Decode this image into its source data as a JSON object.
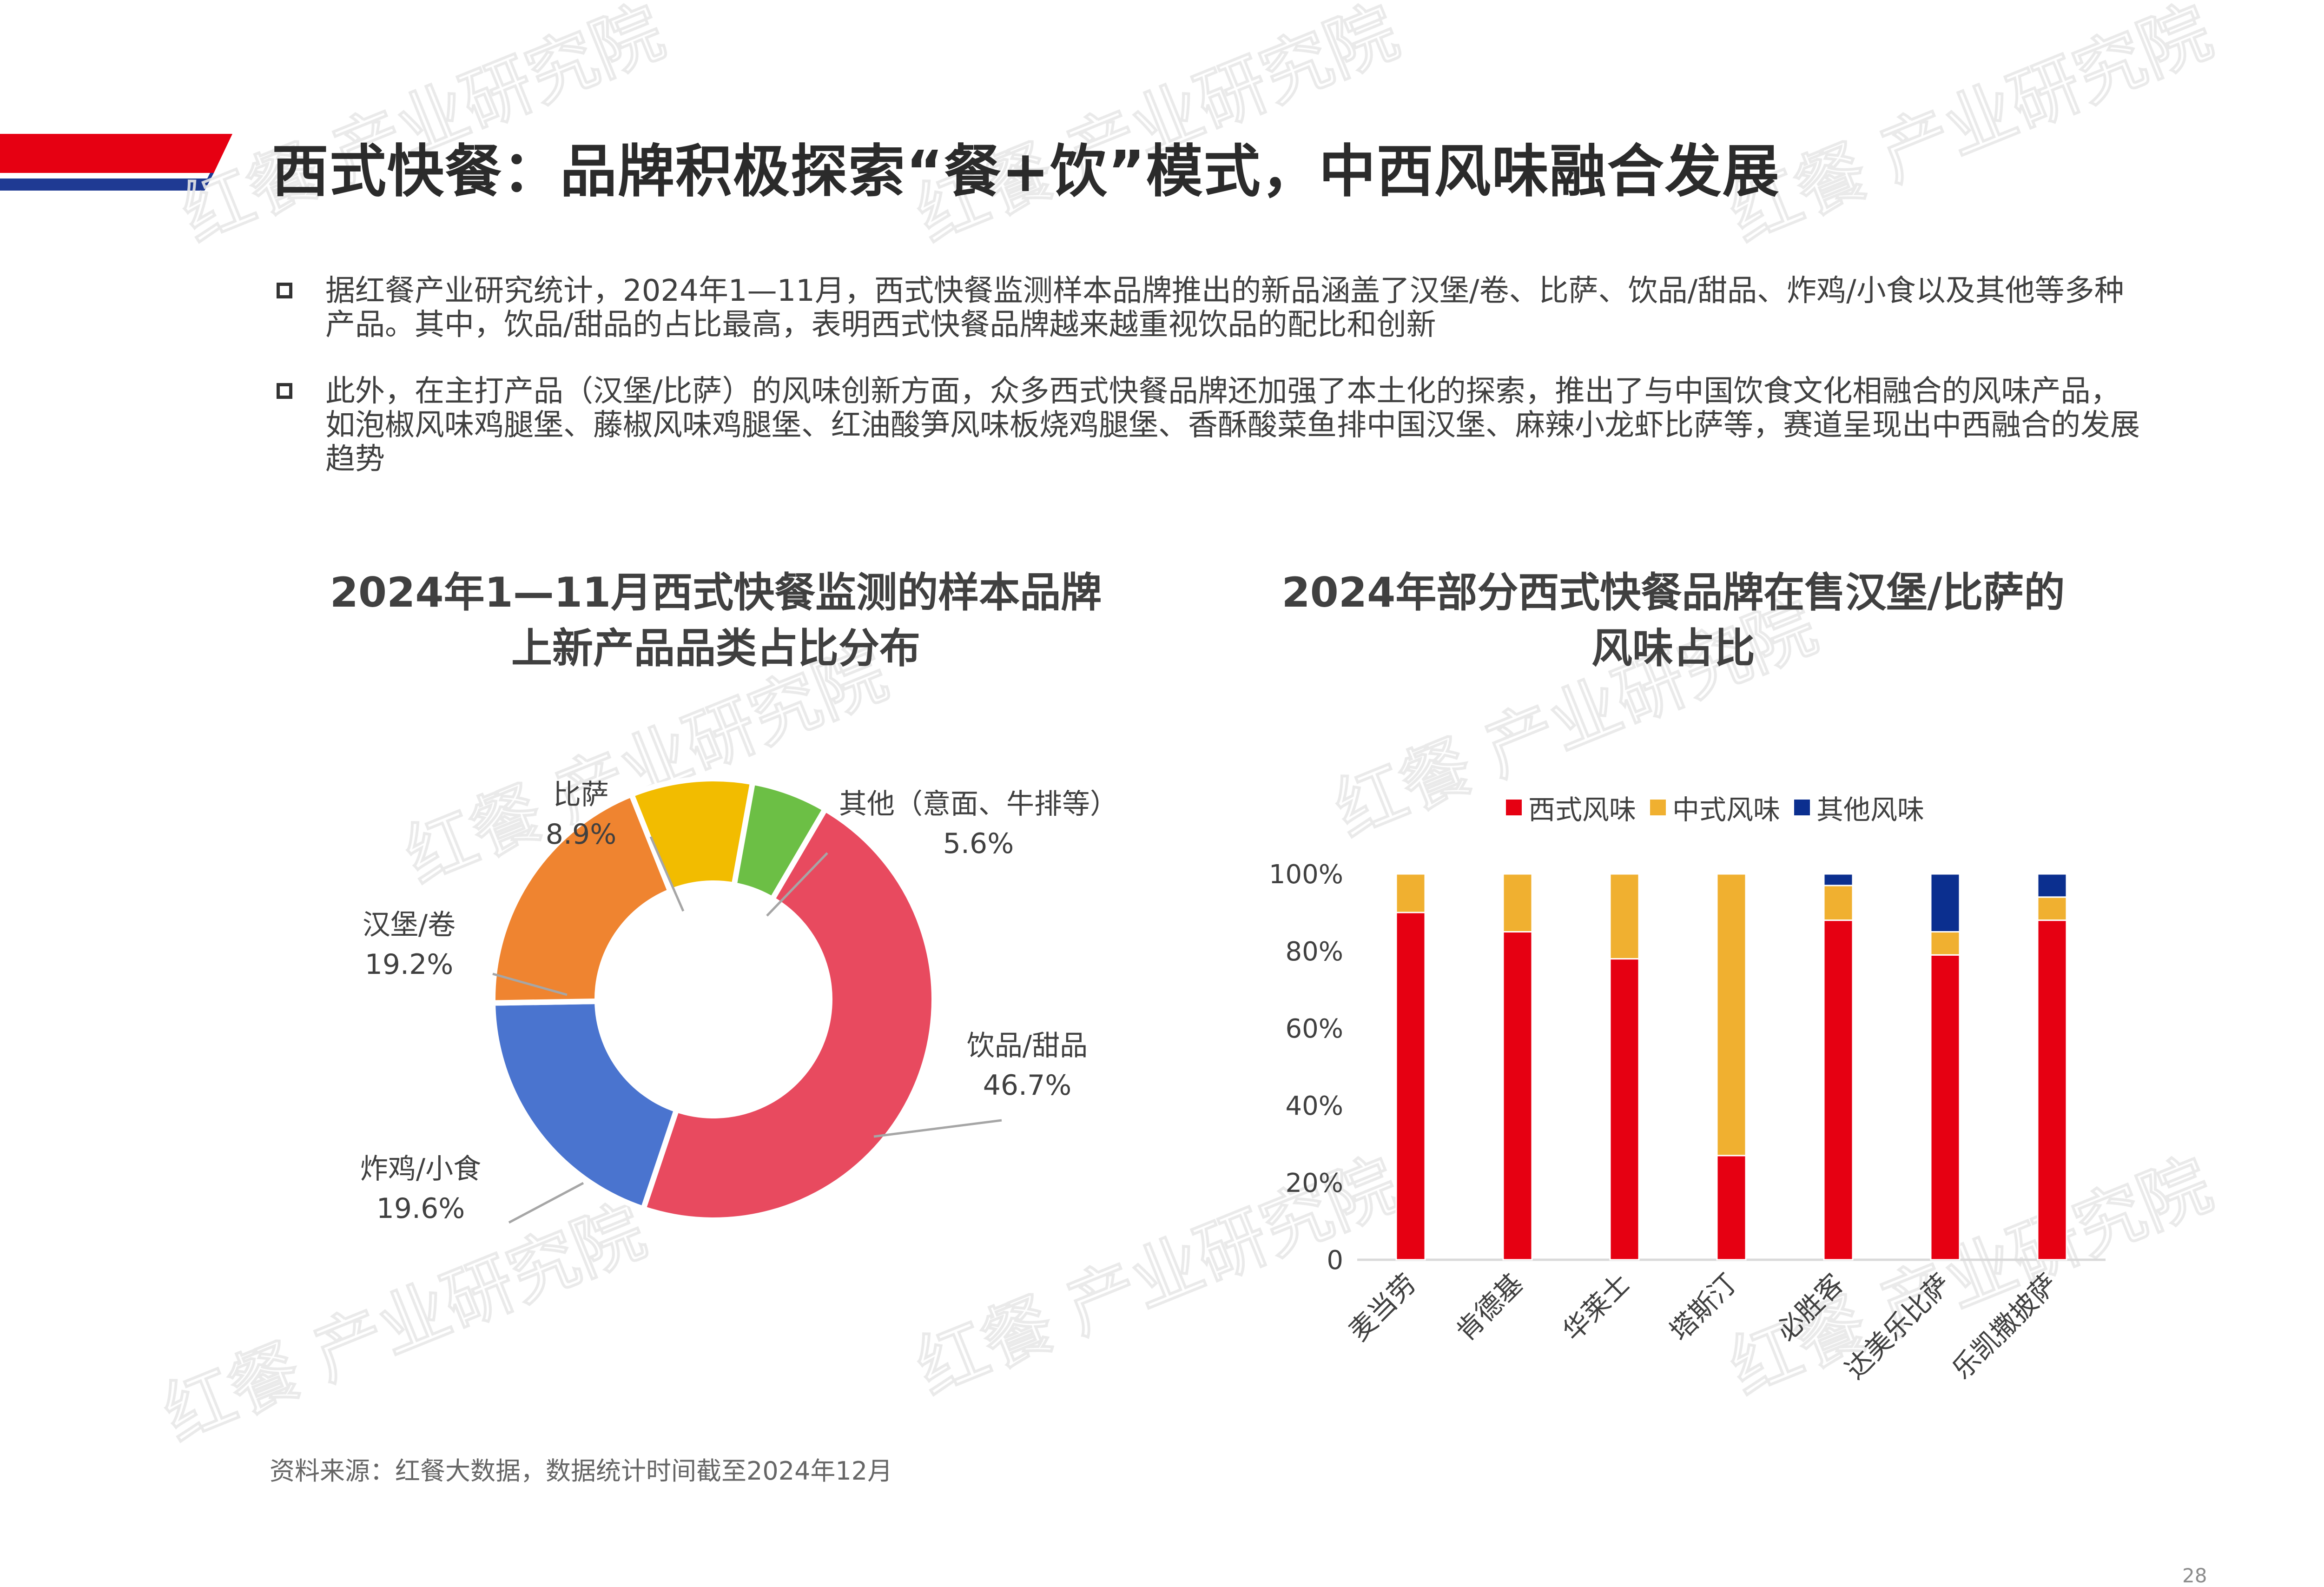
{
  "page": {
    "title": "西式快餐：品牌积极探索“餐+饮”模式，中西风味融合发展",
    "page_number": "28",
    "source": "资料来源：红餐大数据，数据统计时间截至2024年12月",
    "watermark": "红餐 产业研究院",
    "accent_colors": {
      "red": "#e60012",
      "blue": "#1f3a93"
    }
  },
  "bullets": [
    "据红餐产业研究统计，2024年1—11月，西式快餐监测样本品牌推出的新品涵盖了汉堡/卷、比萨、饮品/甜品、炸鸡/小食以及其他等多种产品。其中，饮品/甜品的占比最高，表明西式快餐品牌越来越重视饮品的配比和创新",
    "此外，在主打产品（汉堡/比萨）的风味创新方面，众多西式快餐品牌还加强了本土化的探索，推出了与中国饮食文化相融合的风味产品，如泡椒风味鸡腿堡、藤椒风味鸡腿堡、红油酸笋风味板烧鸡腿堡、香酥酸菜鱼排中国汉堡、麻辣小龙虾比萨等，赛道呈现出中西融合的发展趋势"
  ],
  "chart_data": [
    {
      "type": "pie",
      "donut": true,
      "title_line1": "2024年1—11月西式快餐监测的样本品牌",
      "title_line2": "上新产品品类占比分布",
      "slices": [
        {
          "label": "饮品/甜品",
          "value": 46.7,
          "value_label": "46.7%",
          "color": "#e84a5f"
        },
        {
          "label": "炸鸡/小食",
          "value": 19.6,
          "value_label": "19.6%",
          "color": "#4a74cf"
        },
        {
          "label": "汉堡/卷",
          "value": 19.2,
          "value_label": "19.2%",
          "color": "#ef8430"
        },
        {
          "label": "比萨",
          "value": 8.9,
          "value_label": "8.9%",
          "color": "#f2bc00"
        },
        {
          "label": "其他（意面、牛排等）",
          "value": 5.6,
          "value_label": "5.6%",
          "color": "#6cbf45"
        }
      ]
    },
    {
      "type": "bar",
      "stacked": true,
      "title_line1": "2024年部分西式快餐品牌在售汉堡/比萨的",
      "title_line2": "风味占比",
      "categories": [
        "麦当劳",
        "肯德基",
        "华莱士",
        "塔斯汀",
        "必胜客",
        "达美乐比萨",
        "乐凯撒披萨"
      ],
      "series": [
        {
          "name": "西式风味",
          "color": "#e60012",
          "values": [
            90,
            85,
            78,
            27,
            88,
            79,
            88
          ]
        },
        {
          "name": "中式风味",
          "color": "#f0b030",
          "values": [
            10,
            15,
            22,
            73,
            9,
            6,
            6
          ]
        },
        {
          "name": "其他风味",
          "color": "#0b2f8f",
          "values": [
            0,
            0,
            0,
            0,
            3,
            15,
            6
          ]
        }
      ],
      "ylim": [
        0,
        100
      ],
      "yticks": [
        "0",
        "20%",
        "40%",
        "60%",
        "80%",
        "100%"
      ],
      "legend_position": "top"
    }
  ]
}
